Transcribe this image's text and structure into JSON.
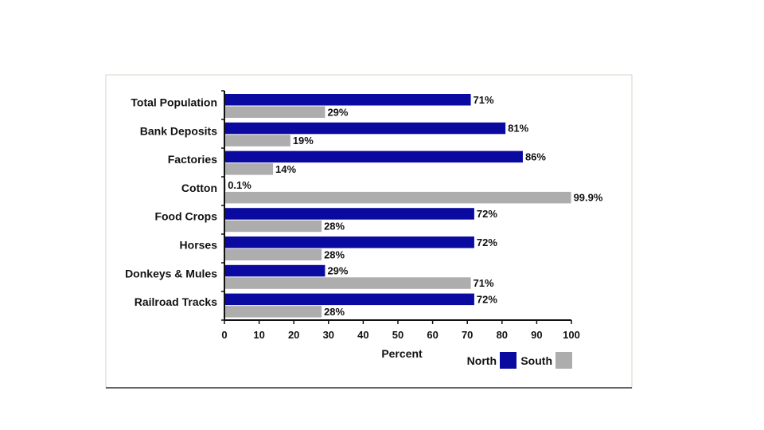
{
  "chart_data": {
    "type": "bar",
    "orientation": "horizontal",
    "title": "",
    "xlabel": "Percent",
    "ylabel": "",
    "xlim": [
      0,
      100
    ],
    "x_ticks": [
      0,
      10,
      20,
      30,
      40,
      50,
      60,
      70,
      80,
      90,
      100
    ],
    "grid": false,
    "legend_position": "bottom-right",
    "categories": [
      "Total Population",
      "Bank Deposits",
      "Factories",
      "Cotton",
      "Food Crops",
      "Horses",
      "Donkeys & Mules",
      "Railroad Tracks"
    ],
    "series": [
      {
        "name": "North",
        "color": "#0a0aa0",
        "values": [
          71,
          81,
          86,
          0.1,
          72,
          72,
          29,
          72
        ],
        "labels": [
          "71%",
          "81%",
          "86%",
          "0.1%",
          "72%",
          "72%",
          "29%",
          "72%"
        ]
      },
      {
        "name": "South",
        "color": "#adadad",
        "values": [
          29,
          19,
          14,
          99.9,
          28,
          28,
          71,
          28
        ],
        "labels": [
          "29%",
          "19%",
          "14%",
          "99.9%",
          "28%",
          "28%",
          "71%",
          "28%"
        ]
      }
    ]
  }
}
